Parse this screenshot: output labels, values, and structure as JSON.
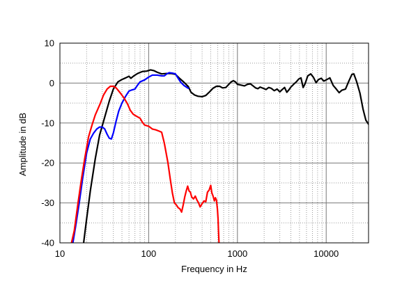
{
  "chart_data": {
    "type": "line",
    "xlabel": "Frequency  in Hz",
    "ylabel": "Amplitude in dB",
    "x_scale": "log",
    "xlim": [
      10,
      30000
    ],
    "ylim": [
      -40,
      10
    ],
    "x_ticks": [
      10,
      100,
      1000,
      10000
    ],
    "x_tick_labels": [
      "10",
      "100",
      "1000",
      "10000"
    ],
    "y_ticks": [
      10,
      0,
      -10,
      -20,
      -30,
      -40
    ],
    "y_tick_labels": [
      "10",
      "0",
      "-10",
      "-20",
      "-30",
      "-40"
    ],
    "grid": true,
    "legend": "none",
    "series": [
      {
        "color": "#000000",
        "points": [
          [
            18.5,
            -40
          ],
          [
            20,
            -34
          ],
          [
            22,
            -27
          ],
          [
            25,
            -19
          ],
          [
            28,
            -13
          ],
          [
            32,
            -8.5
          ],
          [
            36,
            -4.5
          ],
          [
            40,
            -1.5
          ],
          [
            45,
            0.3
          ],
          [
            50,
            0.9
          ],
          [
            55,
            1.3
          ],
          [
            60,
            1.7
          ],
          [
            63,
            1.2
          ],
          [
            68,
            1.8
          ],
          [
            75,
            2.4
          ],
          [
            85,
            2.9
          ],
          [
            95,
            3.0
          ],
          [
            105,
            3.3
          ],
          [
            115,
            3.1
          ],
          [
            125,
            2.7
          ],
          [
            140,
            2.3
          ],
          [
            160,
            2.4
          ],
          [
            180,
            2.4
          ],
          [
            200,
            2.2
          ],
          [
            220,
            1.3
          ],
          [
            250,
            0.2
          ],
          [
            280,
            -0.9
          ],
          [
            300,
            -2.3
          ],
          [
            330,
            -3.0
          ],
          [
            360,
            -3.3
          ],
          [
            400,
            -3.4
          ],
          [
            440,
            -3.1
          ],
          [
            480,
            -2.3
          ],
          [
            530,
            -1.3
          ],
          [
            580,
            -0.8
          ],
          [
            630,
            -0.8
          ],
          [
            680,
            -1.2
          ],
          [
            740,
            -1.1
          ],
          [
            800,
            -0.3
          ],
          [
            850,
            0.3
          ],
          [
            900,
            0.6
          ],
          [
            950,
            0.3
          ],
          [
            1000,
            -0.3
          ],
          [
            1100,
            -0.5
          ],
          [
            1200,
            -0.7
          ],
          [
            1300,
            -0.3
          ],
          [
            1400,
            -0.2
          ],
          [
            1500,
            -0.7
          ],
          [
            1600,
            -1.2
          ],
          [
            1700,
            -1.4
          ],
          [
            1800,
            -1.0
          ],
          [
            1950,
            -1.3
          ],
          [
            2100,
            -1.6
          ],
          [
            2250,
            -1.1
          ],
          [
            2400,
            -1.3
          ],
          [
            2600,
            -1.9
          ],
          [
            2800,
            -1.5
          ],
          [
            3000,
            -2.2
          ],
          [
            3200,
            -1.6
          ],
          [
            3400,
            -1.1
          ],
          [
            3600,
            -2.3
          ],
          [
            3800,
            -1.7
          ],
          [
            4000,
            -1.0
          ],
          [
            4300,
            -0.3
          ],
          [
            4600,
            0.3
          ],
          [
            4900,
            1.0
          ],
          [
            5200,
            1.3
          ],
          [
            5500,
            -1.1
          ],
          [
            5800,
            -0.1
          ],
          [
            6200,
            1.8
          ],
          [
            6700,
            2.3
          ],
          [
            7200,
            1.4
          ],
          [
            7700,
            0.1
          ],
          [
            8200,
            0.9
          ],
          [
            8800,
            1.2
          ],
          [
            9400,
            0.5
          ],
          [
            10000,
            0.8
          ],
          [
            11000,
            1.3
          ],
          [
            12000,
            -0.6
          ],
          [
            13000,
            -1.5
          ],
          [
            14000,
            -2.4
          ],
          [
            15000,
            -1.8
          ],
          [
            16500,
            -1.5
          ],
          [
            18000,
            0.5
          ],
          [
            19500,
            2.2
          ],
          [
            20500,
            2.3
          ],
          [
            22000,
            0.4
          ],
          [
            24000,
            -2.5
          ],
          [
            26000,
            -6.5
          ],
          [
            28000,
            -9.3
          ],
          [
            30000,
            -10.3
          ]
        ]
      },
      {
        "color": "#0000ff",
        "points": [
          [
            14,
            -40
          ],
          [
            15,
            -36
          ],
          [
            16.5,
            -30
          ],
          [
            18,
            -24
          ],
          [
            20,
            -17.5
          ],
          [
            22,
            -14
          ],
          [
            24,
            -12.5
          ],
          [
            26,
            -11.5
          ],
          [
            28,
            -11.0
          ],
          [
            30,
            -11.0
          ],
          [
            32,
            -11.5
          ],
          [
            34,
            -12.8
          ],
          [
            36,
            -13.8
          ],
          [
            38,
            -14.0
          ],
          [
            40,
            -12.5
          ],
          [
            43,
            -9.5
          ],
          [
            46,
            -7.0
          ],
          [
            50,
            -5.0
          ],
          [
            55,
            -3.3
          ],
          [
            60,
            -2.0
          ],
          [
            65,
            -1.7
          ],
          [
            70,
            -1.5
          ],
          [
            75,
            -0.5
          ],
          [
            80,
            0.3
          ],
          [
            90,
            0.8
          ],
          [
            100,
            1.5
          ],
          [
            110,
            2.0
          ],
          [
            125,
            2.0
          ],
          [
            140,
            1.8
          ],
          [
            150,
            1.8
          ],
          [
            160,
            2.3
          ],
          [
            170,
            2.6
          ],
          [
            185,
            2.5
          ],
          [
            200,
            2.3
          ],
          [
            215,
            1.2
          ],
          [
            230,
            0.2
          ],
          [
            250,
            -0.6
          ],
          [
            270,
            -1.1
          ],
          [
            280,
            -1.3
          ]
        ]
      },
      {
        "color": "#ff0000",
        "points": [
          [
            13.5,
            -40
          ],
          [
            14.5,
            -37
          ],
          [
            16,
            -30
          ],
          [
            17.5,
            -24
          ],
          [
            19,
            -19
          ],
          [
            21,
            -13.5
          ],
          [
            23,
            -10.5
          ],
          [
            25,
            -8.0
          ],
          [
            28,
            -5.5
          ],
          [
            31,
            -3.0
          ],
          [
            34,
            -1.5
          ],
          [
            37,
            -0.8
          ],
          [
            40,
            -0.8
          ],
          [
            43,
            -1.2
          ],
          [
            48,
            -2.5
          ],
          [
            53,
            -3.8
          ],
          [
            58,
            -5.3
          ],
          [
            62,
            -6.8
          ],
          [
            67,
            -7.8
          ],
          [
            73,
            -8.3
          ],
          [
            80,
            -8.8
          ],
          [
            85,
            -9.8
          ],
          [
            90,
            -10.5
          ],
          [
            100,
            -10.8
          ],
          [
            110,
            -11.5
          ],
          [
            120,
            -11.7
          ],
          [
            130,
            -12.0
          ],
          [
            140,
            -12.3
          ],
          [
            150,
            -15
          ],
          [
            165,
            -20
          ],
          [
            175,
            -24
          ],
          [
            185,
            -27.5
          ],
          [
            195,
            -30
          ],
          [
            205,
            -30.5
          ],
          [
            215,
            -31.2
          ],
          [
            225,
            -31.5
          ],
          [
            235,
            -32.3
          ],
          [
            245,
            -30.5
          ],
          [
            255,
            -28.5
          ],
          [
            265,
            -27.0
          ],
          [
            275,
            -25.8
          ],
          [
            285,
            -27.0
          ],
          [
            295,
            -27.3
          ],
          [
            305,
            -28.5
          ],
          [
            320,
            -29.0
          ],
          [
            335,
            -28.3
          ],
          [
            350,
            -29.3
          ],
          [
            365,
            -30.0
          ],
          [
            380,
            -31.0
          ],
          [
            400,
            -30.2
          ],
          [
            420,
            -29.5
          ],
          [
            440,
            -29.7
          ],
          [
            460,
            -27.3
          ],
          [
            480,
            -26.8
          ],
          [
            500,
            -25.6
          ],
          [
            515,
            -27.5
          ],
          [
            530,
            -28.2
          ],
          [
            550,
            -29.5
          ],
          [
            565,
            -28.7
          ],
          [
            580,
            -29.3
          ],
          [
            595,
            -31.5
          ],
          [
            605,
            -34
          ],
          [
            612,
            -37
          ],
          [
            620,
            -40
          ]
        ]
      }
    ]
  }
}
